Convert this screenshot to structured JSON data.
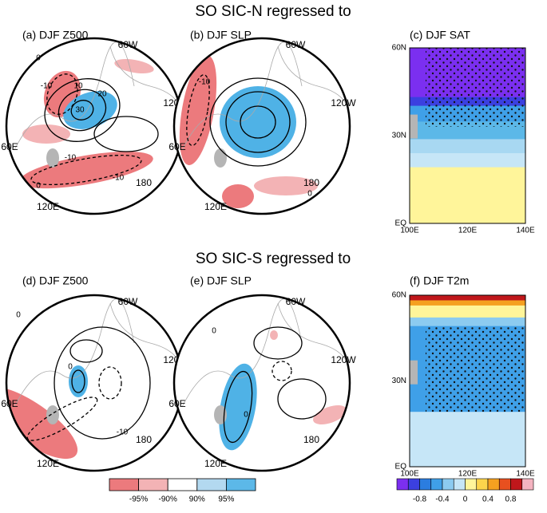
{
  "sections": [
    {
      "title": "SO SIC-N regressed to",
      "panels": [
        {
          "title": "(a) DJF Z500",
          "lon_labels": [
            "60W",
            "120W",
            "180",
            "120E",
            "60E"
          ],
          "contour_labels": [
            "0",
            "-10",
            "10",
            "30",
            "20",
            "-10",
            "-10",
            "0"
          ]
        },
        {
          "title": "(b) DJF SLP",
          "lon_labels": [
            "60W",
            "120W",
            "180",
            "120E",
            "60E"
          ],
          "contour_labels": [
            "-10",
            "0"
          ]
        },
        {
          "title": "(c) DJF SAT",
          "lat_labels": [
            "60N",
            "30N",
            "EQ"
          ],
          "lon_labels": [
            "100E",
            "120E",
            "140E"
          ]
        }
      ]
    },
    {
      "title": "SO SIC-S regressed to",
      "panels": [
        {
          "title": "(d) DJF Z500",
          "lon_labels": [
            "60W",
            "120W",
            "180",
            "120E",
            "60E"
          ],
          "contour_labels": [
            "0",
            "0",
            "-10"
          ]
        },
        {
          "title": "(e) DJF SLP",
          "lon_labels": [
            "60W",
            "120W",
            "180",
            "120E",
            "60E"
          ],
          "contour_labels": [
            "0",
            "0"
          ]
        },
        {
          "title": "(f) DJF T2m",
          "lat_labels": [
            "60N",
            "30N",
            "EQ"
          ],
          "lon_labels": [
            "100E",
            "120E",
            "140E"
          ]
        }
      ]
    }
  ],
  "colorbars": {
    "significance": {
      "labels": [
        "-95%",
        "-90%",
        "90%",
        "95%"
      ]
    },
    "temperature": {
      "labels": [
        "-0.8",
        "-0.4",
        "0",
        "0.4",
        "0.8"
      ]
    }
  }
}
